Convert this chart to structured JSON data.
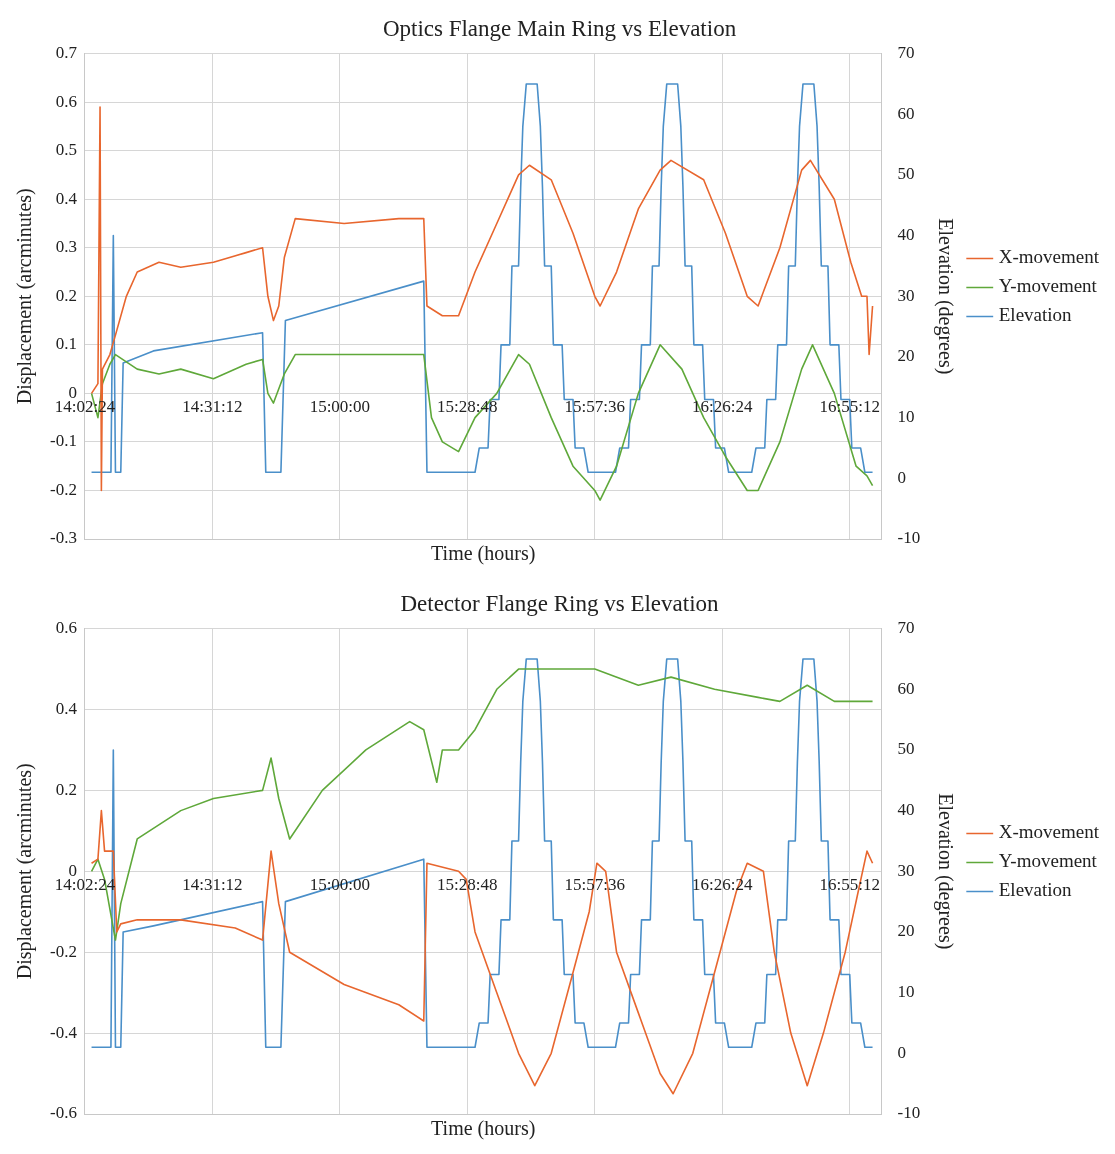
{
  "chart_data": [
    {
      "type": "line",
      "title": "Optics Flange Main Ring vs Elevation",
      "xlabel": "Time (hours)",
      "ylabel": "Displacement (arcminutes)",
      "y2label": "Elevation (degrees)",
      "xlim": [
        14.04,
        17.04
      ],
      "xticks": [
        {
          "value": 14.04,
          "label": "14:02:24"
        },
        {
          "value": 14.52,
          "label": "14:31:12"
        },
        {
          "value": 15.0,
          "label": "15:00:00"
        },
        {
          "value": 15.48,
          "label": "15:28:48"
        },
        {
          "value": 15.96,
          "label": "15:57:36"
        },
        {
          "value": 16.44,
          "label": "16:26:24"
        },
        {
          "value": 16.92,
          "label": "16:55:12"
        }
      ],
      "ylim": [
        -0.3,
        0.7
      ],
      "yticks": [
        -0.3,
        -0.2,
        -0.1,
        0,
        0.1,
        0.2,
        0.3,
        0.4,
        0.5,
        0.6,
        0.7
      ],
      "y2lim": [
        -10,
        70
      ],
      "y2ticks": [
        -10,
        0,
        10,
        20,
        30,
        40,
        50,
        60,
        70
      ],
      "grid": true,
      "legend": "right",
      "marker": "none",
      "line_style": "solid",
      "series": [
        {
          "name": "X-movement",
          "color": "#e8662e",
          "x": [
            14.065,
            14.089,
            14.097,
            14.102,
            14.106,
            14.134,
            14.155,
            14.196,
            14.237,
            14.319,
            14.401,
            14.524,
            14.647,
            14.709,
            14.729,
            14.75,
            14.77,
            14.791,
            14.832,
            15.016,
            15.222,
            15.316,
            15.328,
            15.386,
            15.447,
            15.509,
            15.591,
            15.673,
            15.714,
            15.796,
            15.878,
            15.96,
            15.98,
            16.042,
            16.124,
            16.206,
            16.247,
            16.37,
            16.452,
            16.534,
            16.575,
            16.657,
            16.739,
            16.772,
            16.862,
            16.924,
            16.965,
            16.985,
            16.993,
            17.006
          ],
          "values": [
            0.0,
            0.02,
            0.59,
            -0.2,
            0.05,
            0.08,
            0.12,
            0.2,
            0.25,
            0.27,
            0.26,
            0.27,
            0.29,
            0.3,
            0.2,
            0.15,
            0.18,
            0.28,
            0.36,
            0.35,
            0.36,
            0.36,
            0.18,
            0.16,
            0.16,
            0.25,
            0.35,
            0.45,
            0.47,
            0.44,
            0.33,
            0.2,
            0.18,
            0.25,
            0.38,
            0.46,
            0.48,
            0.44,
            0.33,
            0.2,
            0.18,
            0.3,
            0.46,
            0.48,
            0.4,
            0.27,
            0.2,
            0.2,
            0.08,
            0.18
          ]
        },
        {
          "name": "Y-movement",
          "color": "#5fa83a",
          "x": [
            14.065,
            14.089,
            14.106,
            14.134,
            14.155,
            14.237,
            14.319,
            14.401,
            14.524,
            14.647,
            14.709,
            14.729,
            14.75,
            14.791,
            14.832,
            15.316,
            15.345,
            15.386,
            15.447,
            15.509,
            15.591,
            15.673,
            15.714,
            15.796,
            15.878,
            15.96,
            15.98,
            16.042,
            16.124,
            16.206,
            16.288,
            16.37,
            16.452,
            16.534,
            16.575,
            16.657,
            16.739,
            16.78,
            16.862,
            16.944,
            16.985,
            17.006
          ],
          "values": [
            0.0,
            -0.05,
            0.02,
            0.06,
            0.08,
            0.05,
            0.04,
            0.05,
            0.03,
            0.06,
            0.07,
            0.0,
            -0.02,
            0.04,
            0.08,
            0.08,
            -0.05,
            -0.1,
            -0.12,
            -0.05,
            0.0,
            0.08,
            0.06,
            -0.05,
            -0.15,
            -0.2,
            -0.22,
            -0.15,
            0.0,
            0.1,
            0.05,
            -0.05,
            -0.13,
            -0.2,
            -0.2,
            -0.1,
            0.05,
            0.1,
            0.0,
            -0.15,
            -0.17,
            -0.19
          ]
        },
        {
          "name": "Elevation",
          "color": "#4a8fc9",
          "axis": "y2",
          "x": [
            14.065,
            14.138,
            14.147,
            14.155,
            14.175,
            14.184,
            14.298,
            14.709,
            14.721,
            14.778,
            14.795,
            15.316,
            15.328,
            15.509,
            15.525,
            15.558,
            15.566,
            15.599,
            15.607,
            15.64,
            15.648,
            15.673,
            15.681,
            15.689,
            15.702,
            15.743,
            15.755,
            15.763,
            15.771,
            15.796,
            15.804,
            15.837,
            15.845,
            15.878,
            15.886,
            15.919,
            15.935,
            16.038,
            16.054,
            16.087,
            16.095,
            16.128,
            16.136,
            16.169,
            16.177,
            16.202,
            16.21,
            16.218,
            16.231,
            16.272,
            16.284,
            16.292,
            16.3,
            16.325,
            16.333,
            16.366,
            16.374,
            16.407,
            16.415,
            16.448,
            16.464,
            16.551,
            16.567,
            16.6,
            16.608,
            16.641,
            16.649,
            16.682,
            16.69,
            16.715,
            16.723,
            16.731,
            16.744,
            16.785,
            16.797,
            16.805,
            16.813,
            16.838,
            16.846,
            16.879,
            16.887,
            16.92,
            16.928,
            16.961,
            16.977,
            17.006
          ],
          "values": [
            1,
            1,
            40,
            1,
            1,
            19,
            21,
            24,
            1,
            1,
            26,
            32.5,
            1,
            1,
            5,
            5,
            13,
            13,
            22,
            22,
            35,
            35,
            48,
            58,
            65,
            65,
            58,
            48,
            35,
            35,
            22,
            22,
            13,
            13,
            5,
            5,
            1,
            1,
            5,
            5,
            13,
            13,
            22,
            22,
            35,
            35,
            48,
            58,
            65,
            65,
            58,
            48,
            35,
            35,
            22,
            22,
            13,
            13,
            5,
            5,
            1,
            1,
            5,
            5,
            13,
            13,
            22,
            22,
            35,
            35,
            48,
            58,
            65,
            65,
            58,
            48,
            35,
            35,
            22,
            22,
            13,
            13,
            5,
            5,
            1,
            1
          ]
        }
      ]
    },
    {
      "type": "line",
      "title": "Detector Flange Ring vs Elevation",
      "xlabel": "Time (hours)",
      "ylabel": "Displacement (arcminutes)",
      "y2label": "Elevation (degrees)",
      "xlim": [
        14.04,
        17.04
      ],
      "xticks": [
        {
          "value": 14.04,
          "label": "14:02:24"
        },
        {
          "value": 14.52,
          "label": "14:31:12"
        },
        {
          "value": 15.0,
          "label": "15:00:00"
        },
        {
          "value": 15.48,
          "label": "15:28:48"
        },
        {
          "value": 15.96,
          "label": "15:57:36"
        },
        {
          "value": 16.44,
          "label": "16:26:24"
        },
        {
          "value": 16.92,
          "label": "16:55:12"
        }
      ],
      "ylim": [
        -0.6,
        0.6
      ],
      "yticks": [
        -0.6,
        -0.4,
        -0.2,
        0,
        0.2,
        0.4,
        0.6
      ],
      "y2lim": [
        -10,
        70
      ],
      "y2ticks": [
        -10,
        0,
        10,
        20,
        30,
        40,
        50,
        60,
        70
      ],
      "grid": true,
      "legend": "right",
      "marker": "none",
      "line_style": "solid",
      "series": [
        {
          "name": "X-movement",
          "color": "#e8662e",
          "x": [
            14.065,
            14.089,
            14.102,
            14.114,
            14.147,
            14.16,
            14.175,
            14.237,
            14.401,
            14.606,
            14.709,
            14.741,
            14.77,
            14.811,
            15.016,
            15.222,
            15.316,
            15.328,
            15.447,
            15.476,
            15.509,
            15.591,
            15.673,
            15.734,
            15.796,
            15.878,
            15.939,
            15.968,
            16.001,
            16.042,
            16.124,
            16.206,
            16.255,
            16.329,
            16.411,
            16.493,
            16.534,
            16.595,
            16.636,
            16.698,
            16.76,
            16.821,
            16.903,
            16.952,
            16.985,
            17.006
          ],
          "values": [
            0.02,
            0.03,
            0.15,
            0.05,
            0.05,
            -0.15,
            -0.13,
            -0.12,
            -0.12,
            -0.14,
            -0.17,
            0.05,
            -0.08,
            -0.2,
            -0.28,
            -0.33,
            -0.37,
            0.02,
            0.0,
            -0.02,
            -0.15,
            -0.3,
            -0.45,
            -0.53,
            -0.45,
            -0.25,
            -0.1,
            0.02,
            0.0,
            -0.2,
            -0.35,
            -0.5,
            -0.55,
            -0.45,
            -0.25,
            -0.05,
            0.02,
            0.0,
            -0.2,
            -0.4,
            -0.53,
            -0.4,
            -0.2,
            -0.05,
            0.05,
            0.02
          ]
        },
        {
          "name": "Y-movement",
          "color": "#5fa83a",
          "x": [
            14.065,
            14.089,
            14.114,
            14.155,
            14.175,
            14.237,
            14.401,
            14.524,
            14.709,
            14.741,
            14.77,
            14.811,
            14.934,
            15.098,
            15.263,
            15.316,
            15.365,
            15.386,
            15.447,
            15.509,
            15.591,
            15.673,
            15.837,
            15.96,
            16.124,
            16.247,
            16.411,
            16.575,
            16.657,
            16.76,
            16.862,
            17.006
          ],
          "values": [
            0.0,
            0.03,
            -0.02,
            -0.17,
            -0.08,
            0.08,
            0.15,
            0.18,
            0.2,
            0.28,
            0.18,
            0.08,
            0.2,
            0.3,
            0.37,
            0.35,
            0.22,
            0.3,
            0.3,
            0.35,
            0.45,
            0.5,
            0.5,
            0.5,
            0.46,
            0.48,
            0.45,
            0.43,
            0.42,
            0.46,
            0.42,
            0.42
          ]
        },
        {
          "name": "Elevation",
          "color": "#4a8fc9",
          "axis": "y2",
          "x": [
            14.065,
            14.138,
            14.147,
            14.155,
            14.175,
            14.184,
            14.298,
            14.709,
            14.721,
            14.778,
            14.795,
            15.316,
            15.328,
            15.509,
            15.525,
            15.558,
            15.566,
            15.599,
            15.607,
            15.64,
            15.648,
            15.673,
            15.681,
            15.689,
            15.702,
            15.743,
            15.755,
            15.763,
            15.771,
            15.796,
            15.804,
            15.837,
            15.845,
            15.878,
            15.886,
            15.919,
            15.935,
            16.038,
            16.054,
            16.087,
            16.095,
            16.128,
            16.136,
            16.169,
            16.177,
            16.202,
            16.21,
            16.218,
            16.231,
            16.272,
            16.284,
            16.292,
            16.3,
            16.325,
            16.333,
            16.366,
            16.374,
            16.407,
            16.415,
            16.448,
            16.464,
            16.551,
            16.567,
            16.6,
            16.608,
            16.641,
            16.649,
            16.682,
            16.69,
            16.715,
            16.723,
            16.731,
            16.744,
            16.785,
            16.797,
            16.805,
            16.813,
            16.838,
            16.846,
            16.879,
            16.887,
            16.92,
            16.928,
            16.961,
            16.977,
            17.006
          ],
          "values": [
            1,
            1,
            50,
            1,
            1,
            20,
            21,
            25,
            1,
            1,
            25,
            32,
            1,
            1,
            5,
            5,
            13,
            13,
            22,
            22,
            35,
            35,
            48,
            58,
            65,
            65,
            58,
            48,
            35,
            35,
            22,
            22,
            13,
            13,
            5,
            5,
            1,
            1,
            5,
            5,
            13,
            13,
            22,
            22,
            35,
            35,
            48,
            58,
            65,
            65,
            58,
            48,
            35,
            35,
            22,
            22,
            13,
            13,
            5,
            5,
            1,
            1,
            5,
            5,
            13,
            13,
            22,
            22,
            35,
            35,
            48,
            58,
            65,
            65,
            58,
            48,
            35,
            35,
            22,
            22,
            13,
            13,
            5,
            5,
            1,
            1
          ]
        }
      ]
    }
  ]
}
